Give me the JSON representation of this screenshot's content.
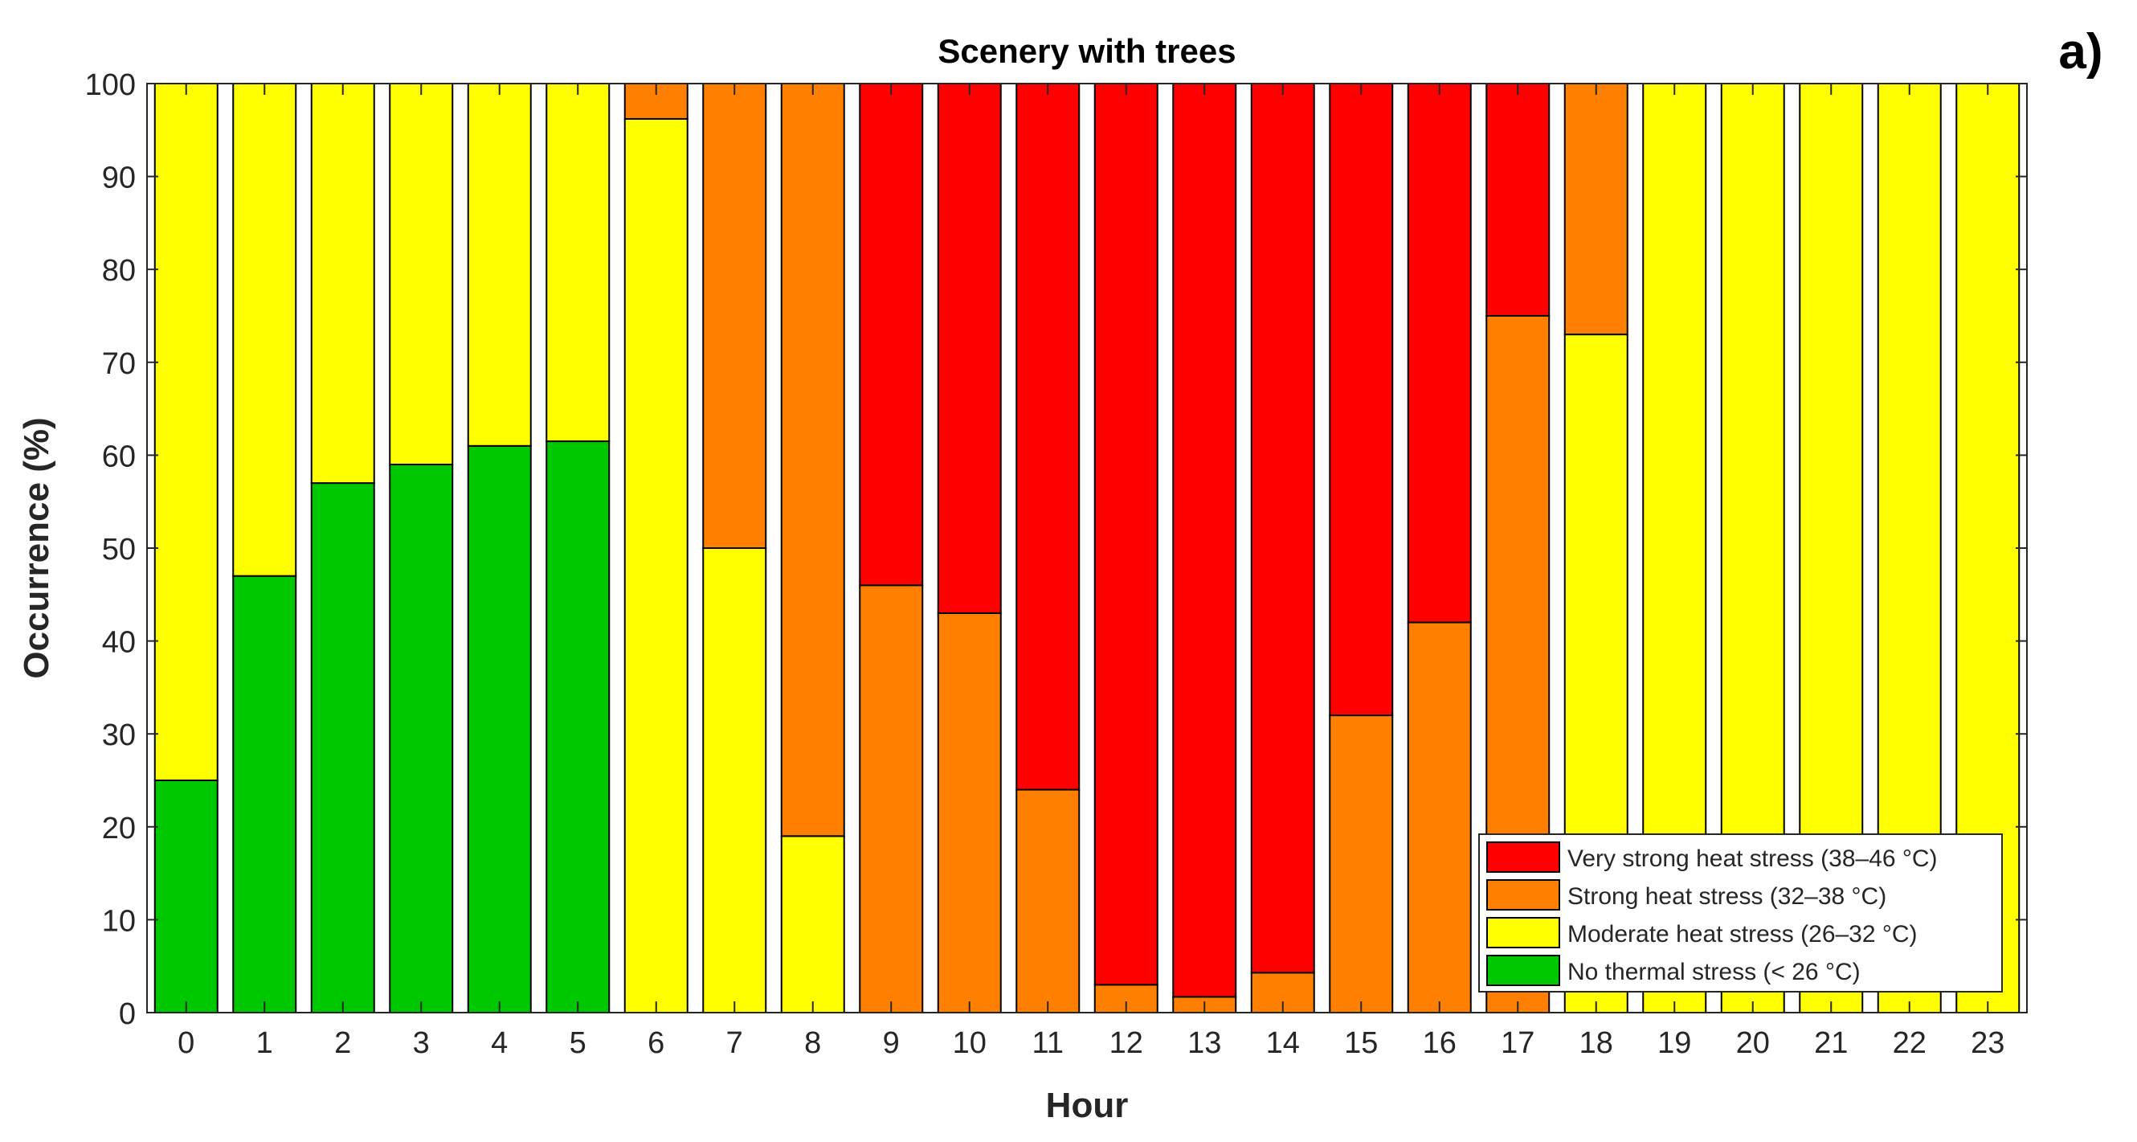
{
  "chart_data": {
    "type": "bar",
    "stacked": true,
    "title": "Scenery with trees",
    "panel_label": "a)",
    "xlabel": "Hour",
    "ylabel": "Occurrence (%)",
    "ylim": [
      0,
      100
    ],
    "yticks": [
      0,
      10,
      20,
      30,
      40,
      50,
      60,
      70,
      80,
      90,
      100
    ],
    "categories": [
      "0",
      "1",
      "2",
      "3",
      "4",
      "5",
      "6",
      "7",
      "8",
      "9",
      "10",
      "11",
      "12",
      "13",
      "14",
      "15",
      "16",
      "17",
      "18",
      "19",
      "20",
      "21",
      "22",
      "23"
    ],
    "series": [
      {
        "name": "No thermal stress (< 26 °C)",
        "color": "#00c800",
        "values": [
          25,
          47,
          57,
          59,
          61,
          61.5,
          0,
          0,
          0,
          0,
          0,
          0,
          0,
          0,
          0,
          0,
          0,
          0,
          0,
          0,
          0,
          0,
          0,
          0
        ]
      },
      {
        "name": "Moderate heat stress (26–32 °C)",
        "color": "#ffff00",
        "values": [
          75,
          53,
          43,
          41,
          39,
          38.5,
          96.2,
          50,
          19,
          0,
          0,
          0,
          0,
          0,
          0,
          0,
          0,
          0,
          73,
          100,
          100,
          100,
          100,
          100
        ]
      },
      {
        "name": "Strong heat stress (32–38 °C)",
        "color": "#ff8000",
        "values": [
          0,
          0,
          0,
          0,
          0,
          0,
          3.8,
          50,
          81,
          46,
          43,
          24,
          3,
          1.7,
          4.3,
          32,
          42,
          75,
          27,
          0,
          0,
          0,
          0,
          0
        ]
      },
      {
        "name": "Very strong heat stress (38–46 °C)",
        "color": "#ff0000",
        "values": [
          0,
          0,
          0,
          0,
          0,
          0,
          0,
          0,
          0,
          54,
          57,
          76,
          97,
          98.3,
          95.7,
          68,
          58,
          25,
          0,
          0,
          0,
          0,
          0,
          0
        ]
      }
    ],
    "legend_order": [
      3,
      2,
      1,
      0
    ],
    "legend_position": "bottom-right",
    "grid": false
  }
}
